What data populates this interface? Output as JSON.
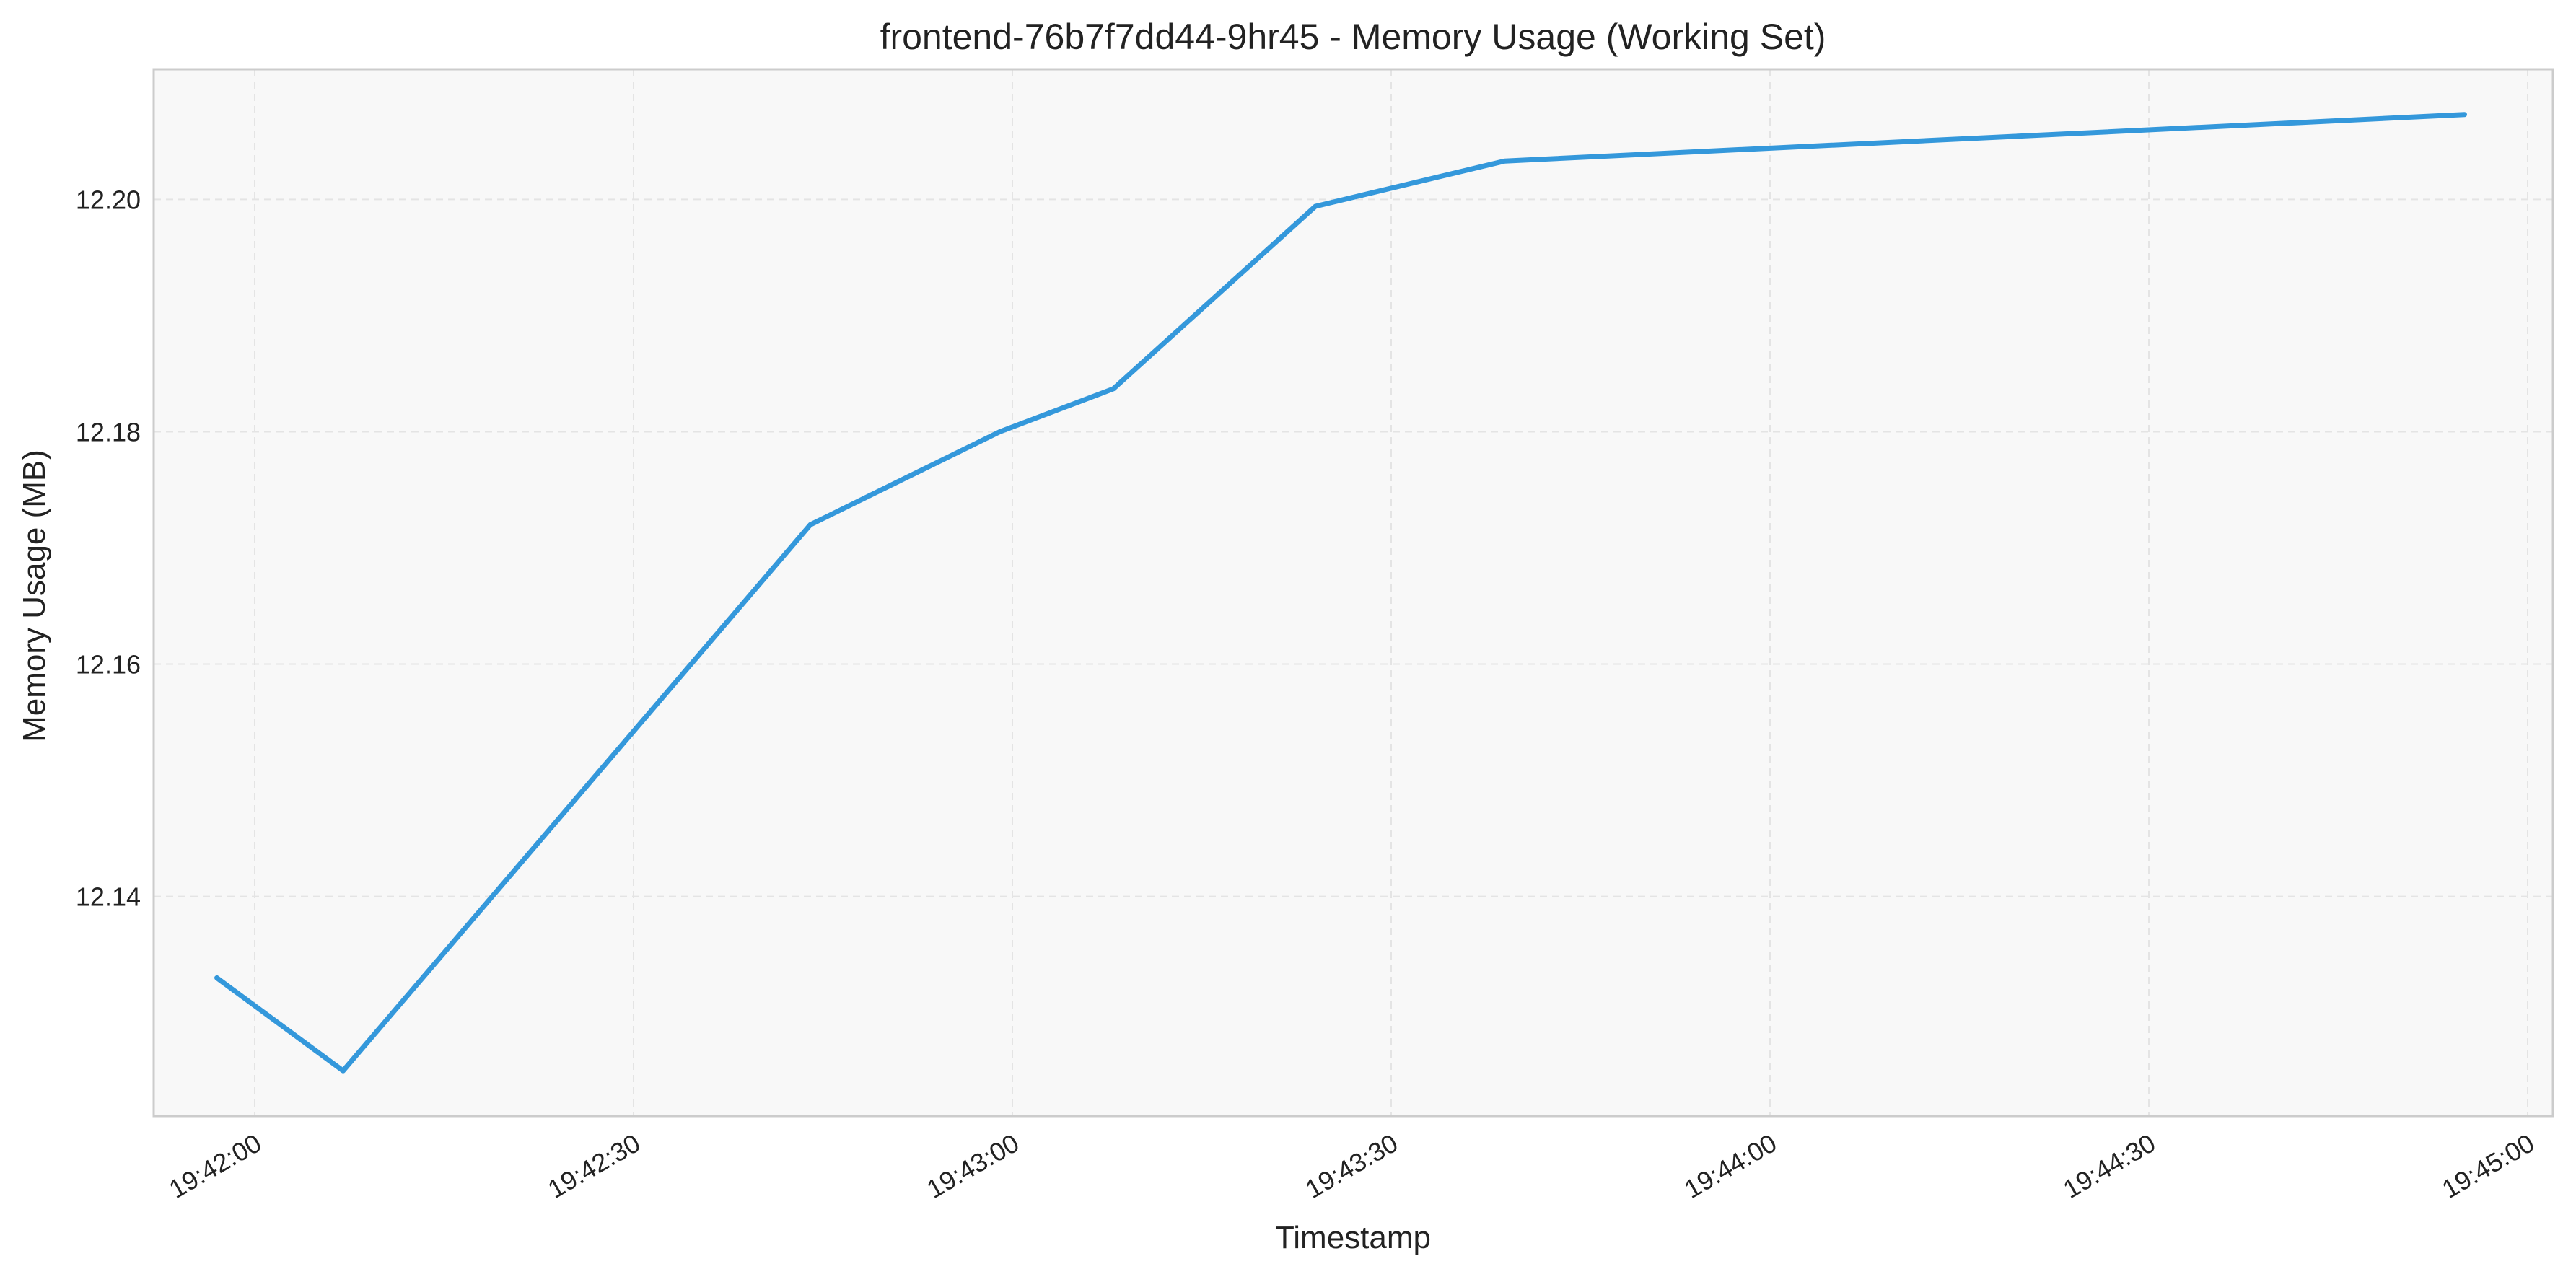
{
  "chart_data": {
    "type": "line",
    "title": "frontend-76b7f7dd44-9hr45 - Memory Usage (Working Set)",
    "xlabel": "Timestamp",
    "ylabel": "Memory Usage (MB)",
    "x": [
      "19:41:57",
      "19:42:07",
      "19:42:44",
      "19:42:59",
      "19:43:08",
      "19:43:24",
      "19:43:39",
      "19:44:55"
    ],
    "series": [
      {
        "values": [
          12.133,
          12.125,
          12.172,
          12.18,
          12.1837,
          12.1994,
          12.2033,
          12.2073
        ]
      }
    ],
    "xlim": [
      "19:41:52",
      "19:45:02"
    ],
    "ylim": [
      12.1211,
      12.2112
    ],
    "xticks": [
      "19:42:00",
      "19:42:30",
      "19:43:00",
      "19:43:30",
      "19:44:00",
      "19:44:30",
      "19:45:00"
    ],
    "yticks": [
      "12.14",
      "12.16",
      "12.18",
      "12.20"
    ],
    "grid": true,
    "colors": {
      "line": "#3498db",
      "plot_background": "#f8f8f8",
      "grid": "#e4e4e4",
      "frame": "#cccccc"
    }
  }
}
